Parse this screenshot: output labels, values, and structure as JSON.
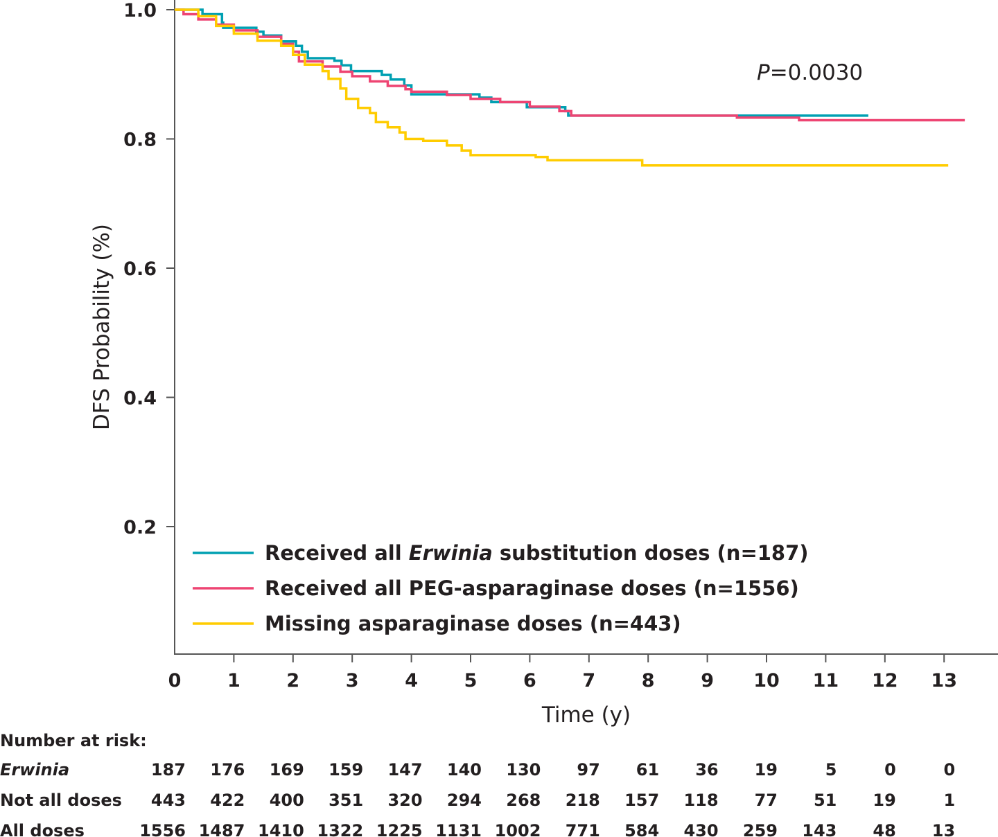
{
  "chart_data": {
    "type": "line",
    "subtype": "kaplan-meier step",
    "xlabel": "Time (y)",
    "ylabel": "DFS Probability (%)",
    "xlim": [
      0,
      13.9
    ],
    "ylim": [
      0,
      1.0
    ],
    "xticks": [
      "0",
      "1",
      "2",
      "3",
      "4",
      "5",
      "6",
      "7",
      "8",
      "9",
      "10",
      "11",
      "12",
      "13"
    ],
    "yticks": [
      "0.2",
      "0.4",
      "0.6",
      "0.8",
      "1.0"
    ],
    "ytick_values": [
      0.2,
      0.4,
      0.6,
      0.8,
      1.0
    ],
    "grid": false,
    "annotation": {
      "prefix": "P",
      "text": "=0.0030"
    },
    "legend_placement": "bottom-left",
    "series": [
      {
        "name": "Received all Erwinia substitution doses (n=187)",
        "legend_parts": [
          "Received all ",
          "Erwinia",
          " substitution doses (n=187)"
        ],
        "color": "#00A0B2",
        "points": [
          [
            0,
            1
          ],
          [
            0.47,
            0.993
          ],
          [
            0.8,
            0.98
          ],
          [
            0.82,
            0.972
          ],
          [
            1.38,
            0.966
          ],
          [
            1.5,
            0.96
          ],
          [
            1.8,
            0.951
          ],
          [
            2.05,
            0.944
          ],
          [
            2.15,
            0.935
          ],
          [
            2.25,
            0.925
          ],
          [
            2.7,
            0.921
          ],
          [
            2.82,
            0.914
          ],
          [
            2.98,
            0.905
          ],
          [
            3.5,
            0.899
          ],
          [
            3.65,
            0.892
          ],
          [
            3.88,
            0.883
          ],
          [
            4.0,
            0.869
          ],
          [
            5.15,
            0.864
          ],
          [
            5.35,
            0.857
          ],
          [
            5.95,
            0.849
          ],
          [
            6.6,
            0.843
          ],
          [
            6.65,
            0.836
          ]
        ],
        "end": 11.72
      },
      {
        "name": "Received all PEG-asparaginase doses (n=1556)",
        "legend_parts": [
          "Received all PEG-asparaginase doses (n=1556)",
          "",
          ""
        ],
        "color": "#EE4472",
        "points": [
          [
            0,
            1
          ],
          [
            0.15,
            0.993
          ],
          [
            0.4,
            0.985
          ],
          [
            0.7,
            0.977
          ],
          [
            1.0,
            0.968
          ],
          [
            1.4,
            0.958
          ],
          [
            1.8,
            0.947
          ],
          [
            2.0,
            0.935
          ],
          [
            2.1,
            0.92
          ],
          [
            2.5,
            0.912
          ],
          [
            2.8,
            0.904
          ],
          [
            3.0,
            0.897
          ],
          [
            3.3,
            0.889
          ],
          [
            3.6,
            0.882
          ],
          [
            3.9,
            0.877
          ],
          [
            4.0,
            0.873
          ],
          [
            4.6,
            0.868
          ],
          [
            5.0,
            0.862
          ],
          [
            5.5,
            0.857
          ],
          [
            6.0,
            0.85
          ],
          [
            6.5,
            0.843
          ],
          [
            6.7,
            0.836
          ],
          [
            9.5,
            0.833
          ],
          [
            10.55,
            0.829
          ]
        ],
        "end": 13.35
      },
      {
        "name": "Missing asparaginase doses (n=443)",
        "legend_parts": [
          "Missing asparaginase doses (n=443)",
          "",
          ""
        ],
        "color": "#FFCC00",
        "points": [
          [
            0,
            1
          ],
          [
            0.4,
            0.99
          ],
          [
            0.7,
            0.975
          ],
          [
            1.0,
            0.963
          ],
          [
            1.4,
            0.952
          ],
          [
            1.8,
            0.944
          ],
          [
            2.0,
            0.93
          ],
          [
            2.2,
            0.915
          ],
          [
            2.5,
            0.905
          ],
          [
            2.6,
            0.893
          ],
          [
            2.8,
            0.878
          ],
          [
            2.9,
            0.862
          ],
          [
            3.1,
            0.848
          ],
          [
            3.3,
            0.84
          ],
          [
            3.4,
            0.826
          ],
          [
            3.6,
            0.818
          ],
          [
            3.8,
            0.81
          ],
          [
            3.9,
            0.8
          ],
          [
            4.2,
            0.797
          ],
          [
            4.6,
            0.79
          ],
          [
            4.85,
            0.782
          ],
          [
            5.0,
            0.775
          ],
          [
            6.1,
            0.772
          ],
          [
            6.3,
            0.767
          ],
          [
            7.9,
            0.759
          ]
        ],
        "end": 13.07
      }
    ],
    "risk_table": {
      "title": "Number at risk:",
      "rows": [
        {
          "label": "Erwinia",
          "italic": true,
          "values": [
            "187",
            "176",
            "169",
            "159",
            "147",
            "140",
            "130",
            "97",
            "61",
            "36",
            "19",
            "5",
            "0",
            "0"
          ]
        },
        {
          "label": "Not all doses",
          "italic": false,
          "values": [
            "443",
            "422",
            "400",
            "351",
            "320",
            "294",
            "268",
            "218",
            "157",
            "118",
            "77",
            "51",
            "19",
            "1"
          ]
        },
        {
          "label": "All doses",
          "italic": false,
          "values": [
            "1556",
            "1487",
            "1410",
            "1322",
            "1225",
            "1131",
            "1002",
            "771",
            "584",
            "430",
            "259",
            "143",
            "48",
            "13"
          ]
        }
      ]
    }
  }
}
